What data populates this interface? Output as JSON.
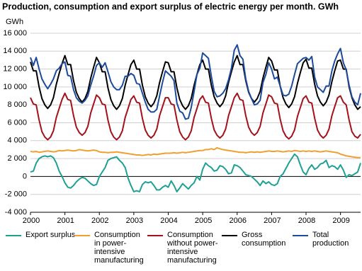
{
  "chart_data": {
    "type": "line",
    "title": "Production, consumption and export surplus of electric energy per month. GWh",
    "y_label": "GWh",
    "categories": [
      "2000",
      null,
      null,
      null,
      null,
      null,
      null,
      null,
      null,
      null,
      null,
      null,
      "2001",
      null,
      null,
      null,
      null,
      null,
      null,
      null,
      null,
      null,
      null,
      null,
      "2002",
      null,
      null,
      null,
      null,
      null,
      null,
      null,
      null,
      null,
      null,
      null,
      "2003",
      null,
      null,
      null,
      null,
      null,
      null,
      null,
      null,
      null,
      null,
      null,
      "2004",
      null,
      null,
      null,
      null,
      null,
      null,
      null,
      null,
      null,
      null,
      null,
      "2005",
      null,
      null,
      null,
      null,
      null,
      null,
      null,
      null,
      null,
      null,
      null,
      "2006",
      null,
      null,
      null,
      null,
      null,
      null,
      null,
      null,
      null,
      null,
      null,
      "2007",
      null,
      null,
      null,
      null,
      null,
      null,
      null,
      null,
      null,
      null,
      null,
      "2008",
      null,
      null,
      null,
      null,
      null,
      null,
      null,
      null,
      null,
      null,
      null,
      "2009",
      null,
      null,
      null,
      null,
      null,
      null,
      null
    ],
    "ylim": [
      -4000,
      16000
    ],
    "yticks": [
      {
        "value": -4000,
        "label": "-4 000"
      },
      {
        "value": -2000,
        "label": "-2 000"
      },
      0,
      {
        "value": 2000,
        "label": "2 000"
      },
      {
        "value": 4000,
        "label": "4 000"
      },
      {
        "value": 6000,
        "label": "6 000"
      },
      {
        "value": 8000,
        "label": "8 000"
      },
      {
        "value": 10000,
        "label": "10 000"
      },
      {
        "value": 12000,
        "label": "12 000"
      },
      {
        "value": 14000,
        "label": "14 000"
      },
      {
        "value": 16000,
        "label": "16 000"
      }
    ],
    "grid": true,
    "series": [
      {
        "name": "Export surplus",
        "color": "#1fa095",
        "values": [
          500,
          600,
          1500,
          2000,
          2200,
          2300,
          2200,
          2300,
          2100,
          1500,
          600,
          0,
          -700,
          -1200,
          -1300,
          -1000,
          -600,
          -300,
          -100,
          -200,
          -500,
          -800,
          -1000,
          -900,
          0,
          500,
          1000,
          1800,
          2000,
          2100,
          2200,
          1800,
          1500,
          1000,
          -200,
          -1000,
          -1700,
          -1600,
          -1700,
          -900,
          -600,
          -700,
          -600,
          -1000,
          -1500,
          -1500,
          -1200,
          -1000,
          -1200,
          -500,
          -1000,
          -1700,
          -1300,
          -800,
          -1100,
          -1400,
          -1000,
          -700,
          0,
          -400,
          800,
          1500,
          1200,
          1000,
          600,
          700,
          1200,
          1100,
          800,
          300,
          400,
          1300,
          1200,
          1000,
          600,
          200,
          100,
          0,
          -300,
          -600,
          -1000,
          -500,
          -800,
          -600,
          -900,
          -1000,
          -800,
          0,
          300,
          900,
          1500,
          2000,
          2500,
          2200,
          1300,
          500,
          200,
          900,
          1300,
          800,
          1000,
          1400,
          1500,
          1800,
          1000,
          1200,
          1100,
          800,
          1300,
          700,
          -100,
          200,
          100,
          300,
          500,
          1500
        ]
      },
      {
        "name": "Consumption in power-intensive manufacturing",
        "color": "#f0a030",
        "values": [
          2800,
          2750,
          2800,
          2700,
          2750,
          2800,
          2850,
          2800,
          2750,
          2800,
          2900,
          2850,
          2900,
          2950,
          2900,
          2850,
          2900,
          3000,
          2950,
          2900,
          2850,
          2900,
          2950,
          2900,
          2750,
          2700,
          2700,
          2650,
          2700,
          2700,
          2750,
          2700,
          2650,
          2600,
          2550,
          2500,
          2450,
          2400,
          2400,
          2350,
          2400,
          2450,
          2400,
          2500,
          2450,
          2500,
          2550,
          2600,
          2600,
          2600,
          2650,
          2600,
          2650,
          2700,
          2650,
          2700,
          2750,
          2800,
          2850,
          2900,
          2900,
          3000,
          3000,
          3100,
          3000,
          3200,
          3100,
          3000,
          2950,
          2900,
          2850,
          2800,
          2750,
          2700,
          2700,
          2650,
          2700,
          2750,
          2700,
          2750,
          2700,
          2750,
          2800,
          2850,
          2800,
          2800,
          2850,
          2800,
          2750,
          2800,
          2850,
          2800,
          2900,
          2850,
          2800,
          2850,
          2800,
          2850,
          2800,
          2850,
          2800,
          2750,
          2800,
          2850,
          2800,
          2750,
          2700,
          2650,
          2500,
          2400,
          2300,
          2250,
          2200,
          2150,
          2100,
          2100
        ]
      },
      {
        "name": "Consumption without power-intensive manufacturing",
        "color": "#a3121a",
        "values": [
          8800,
          8100,
          8000,
          6300,
          5000,
          4400,
          4100,
          4400,
          5100,
          6600,
          7600,
          8600,
          9300,
          8600,
          8500,
          6800,
          5500,
          4900,
          4600,
          4900,
          5600,
          7100,
          8100,
          9100,
          8800,
          8100,
          8000,
          6300,
          5000,
          4400,
          4100,
          4400,
          5100,
          6600,
          7600,
          8600,
          9000,
          8300,
          8200,
          6500,
          5200,
          4600,
          4300,
          4600,
          5300,
          6800,
          7800,
          8800,
          8800,
          8100,
          8000,
          6300,
          5000,
          4400,
          4100,
          4400,
          5100,
          6600,
          7600,
          8600,
          9000,
          8300,
          8200,
          6500,
          5200,
          4600,
          4300,
          4600,
          5300,
          6800,
          7800,
          8800,
          9300,
          8600,
          8500,
          6800,
          5500,
          4900,
          4600,
          4900,
          5600,
          7100,
          8100,
          9100,
          8900,
          8200,
          8100,
          6400,
          5100,
          4500,
          4200,
          4500,
          5200,
          6700,
          7700,
          8700,
          9000,
          8300,
          8200,
          6500,
          5200,
          4600,
          4300,
          4600,
          5300,
          6800,
          7800,
          8800,
          9000,
          8300,
          8000,
          6300,
          5000,
          4500,
          4300,
          4700
        ]
      },
      {
        "name": "Gross consumption",
        "color": "#000000",
        "values": [
          12800,
          11800,
          11800,
          10000,
          8700,
          8000,
          7600,
          8000,
          8800,
          10300,
          11500,
          12600,
          13500,
          12500,
          12500,
          10700,
          9400,
          8700,
          8300,
          8700,
          9500,
          11000,
          12200,
          13300,
          12700,
          11700,
          11700,
          9900,
          8600,
          7900,
          7500,
          7900,
          8700,
          10200,
          11400,
          12500,
          13000,
          12000,
          12000,
          10200,
          8900,
          8200,
          7800,
          8200,
          9000,
          10500,
          11700,
          12800,
          12700,
          11700,
          11700,
          9900,
          8600,
          7900,
          7500,
          7900,
          8700,
          10200,
          11400,
          12500,
          13000,
          12000,
          12000,
          10200,
          8900,
          8200,
          7800,
          8200,
          9000,
          10500,
          11700,
          12800,
          13500,
          12500,
          12500,
          10700,
          9400,
          8700,
          8300,
          8700,
          9500,
          11000,
          12200,
          13300,
          12900,
          11900,
          11900,
          10100,
          8800,
          8100,
          7700,
          8100,
          8900,
          10400,
          11600,
          12700,
          13100,
          12100,
          12100,
          10300,
          9000,
          8300,
          7900,
          8300,
          9100,
          10600,
          11800,
          12900,
          13000,
          12000,
          12000,
          10000,
          8800,
          8000,
          7500,
          7800
        ]
      },
      {
        "name": "Total production",
        "color": "#1d4b9b",
        "values": [
          13300,
          12400,
          13300,
          12000,
          10900,
          10300,
          9800,
          10300,
          10900,
          11800,
          12100,
          12600,
          12800,
          11300,
          11200,
          9700,
          8800,
          8400,
          8200,
          8500,
          9000,
          10200,
          11200,
          12400,
          12700,
          12200,
          12700,
          11700,
          10600,
          10000,
          9700,
          9700,
          10200,
          11200,
          11200,
          11500,
          11300,
          10400,
          10300,
          9300,
          8300,
          7500,
          7200,
          7200,
          7500,
          9000,
          10500,
          11800,
          11500,
          11200,
          10700,
          8200,
          7300,
          7100,
          6400,
          6500,
          7700,
          9500,
          11400,
          12100,
          13800,
          13500,
          13200,
          11200,
          9500,
          8900,
          9000,
          9300,
          9800,
          10800,
          12100,
          14100,
          14700,
          13500,
          13100,
          10900,
          9500,
          8700,
          8000,
          8100,
          8500,
          10500,
          11400,
          12700,
          12000,
          10900,
          11100,
          10100,
          9100,
          9000,
          9200,
          10100,
          11400,
          12600,
          12900,
          13200,
          13300,
          13000,
          13400,
          11100,
          10000,
          9700,
          9400,
          10100,
          10100,
          11800,
          12900,
          13700,
          14300,
          12700,
          11900,
          10200,
          8900,
          8300,
          8000,
          9300
        ]
      }
    ]
  }
}
